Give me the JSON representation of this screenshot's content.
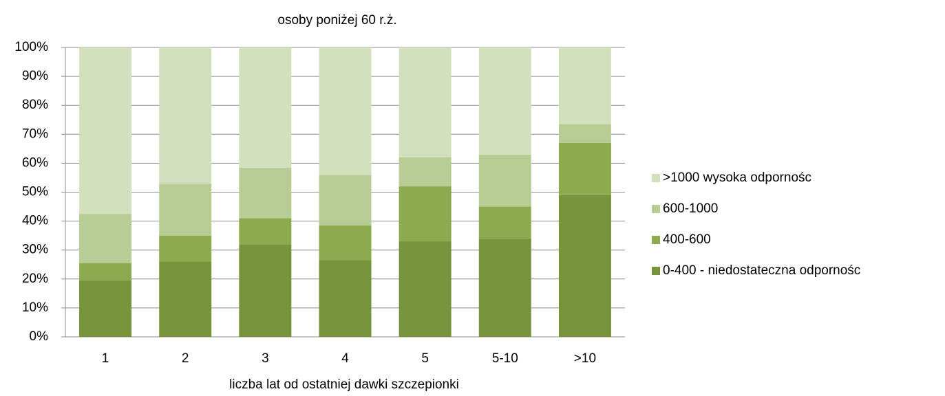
{
  "chart_data": {
    "type": "stacked_bar",
    "title": "osoby poniżej 60 r.ż.",
    "x_label": "liczba lat od ostatniej dawki szczepionki",
    "categories": [
      "1",
      "2",
      "3",
      "4",
      "5",
      "5-10",
      ">10"
    ],
    "series": [
      {
        "name": "0-400 - niedostateczna odpornośc",
        "color": "#77933c",
        "values": [
          19.5,
          26,
          32,
          26.5,
          33,
          34,
          49
        ]
      },
      {
        "name": "400-600",
        "color": "#8eaa4f",
        "values": [
          6,
          9,
          9,
          12,
          19,
          11,
          18
        ]
      },
      {
        "name": "600-1000",
        "color": "#b8cc95",
        "values": [
          17,
          18,
          17.5,
          17.5,
          10,
          18,
          6.5
        ]
      },
      {
        "name": ">1000 wysoka odpornośc",
        "color": "#d3e0be",
        "values": [
          57.5,
          47,
          41.5,
          44,
          38,
          37,
          26.5
        ]
      }
    ],
    "ylim": [
      0,
      100
    ],
    "yticks": [
      {
        "value": 0,
        "label": "0%"
      },
      {
        "value": 10,
        "label": "10%"
      },
      {
        "value": 20,
        "label": "20%"
      },
      {
        "value": 30,
        "label": "30%"
      },
      {
        "value": 40,
        "label": "40%"
      },
      {
        "value": 50,
        "label": "50%"
      },
      {
        "value": 60,
        "label": "60%"
      },
      {
        "value": 70,
        "label": "70%"
      },
      {
        "value": 80,
        "label": "80%"
      },
      {
        "value": 90,
        "label": "90%"
      },
      {
        "value": 100,
        "label": "100%"
      }
    ],
    "grid": true,
    "legend": "right"
  }
}
